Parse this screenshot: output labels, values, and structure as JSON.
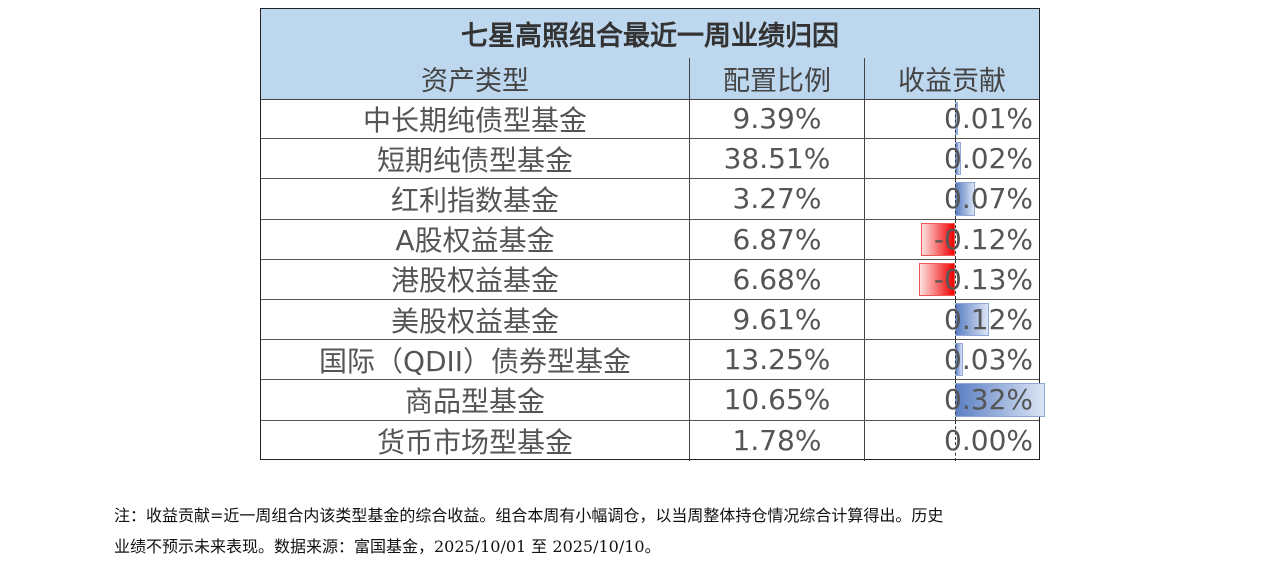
{
  "chart_data": {
    "type": "table",
    "title": "七星高照组合最近一周业绩归因",
    "columns": [
      "资产类型",
      "配置比例",
      "收益贡献"
    ],
    "rows": [
      {
        "type": "中长期纯债型基金",
        "allocation": "9.39%",
        "contribution": "0.01%",
        "value": 0.01
      },
      {
        "type": "短期纯债型基金",
        "allocation": "38.51%",
        "contribution": "0.02%",
        "value": 0.02
      },
      {
        "type": "红利指数基金",
        "allocation": "3.27%",
        "contribution": "0.07%",
        "value": 0.07
      },
      {
        "type": "A股权益基金",
        "allocation": "6.87%",
        "contribution": "-0.12%",
        "value": -0.12
      },
      {
        "type": "港股权益基金",
        "allocation": "6.68%",
        "contribution": "-0.13%",
        "value": -0.13
      },
      {
        "type": "美股权益基金",
        "allocation": "9.61%",
        "contribution": "0.12%",
        "value": 0.12
      },
      {
        "type": "国际（QDII）债券型基金",
        "allocation": "13.25%",
        "contribution": "0.03%",
        "value": 0.03
      },
      {
        "type": "商品型基金",
        "allocation": "10.65%",
        "contribution": "0.32%",
        "value": 0.32
      },
      {
        "type": "货币市场型基金",
        "allocation": "1.78%",
        "contribution": "0.00%",
        "value": 0.0
      }
    ],
    "bar_colors": {
      "positive": "#5b7fc3",
      "negative": "#f00000"
    }
  },
  "note": {
    "line1": "注：收益贡献=近一周组合内该类型基金的综合收益。组合本周有小幅调仓，以当周整体持仓情况综合计算得出。历史",
    "line2": "业绩不预示未来表现。数据来源：富国基金，2025/10/01 至 2025/10/10。"
  }
}
